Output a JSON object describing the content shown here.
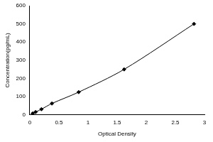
{
  "chart_data": {
    "type": "line",
    "x_label": "Optical Density",
    "y_label": "Concentration(pg/mL)",
    "x": [
      0.05,
      0.1,
      0.2,
      0.38,
      0.84,
      1.62,
      2.82
    ],
    "values": [
      7.8,
      15.6,
      31.2,
      62.5,
      125,
      250,
      500
    ],
    "color": "#000000",
    "marker": "diamond",
    "xlim": [
      0,
      3
    ],
    "xticks": [
      0,
      0.5,
      1,
      1.5,
      2,
      2.5,
      3
    ],
    "ylim": [
      0,
      600
    ],
    "yticks": [
      0,
      100,
      200,
      300,
      400,
      500,
      600
    ],
    "grid": false
  }
}
